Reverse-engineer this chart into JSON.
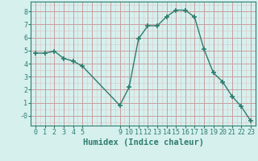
{
  "x": [
    0,
    1,
    2,
    3,
    4,
    5,
    9,
    10,
    11,
    12,
    13,
    14,
    15,
    16,
    17,
    18,
    19,
    20,
    21,
    22,
    23
  ],
  "y": [
    4.8,
    4.8,
    4.95,
    4.4,
    4.2,
    3.8,
    0.8,
    2.2,
    5.9,
    6.9,
    6.9,
    7.6,
    8.1,
    8.1,
    7.55,
    5.1,
    3.3,
    2.6,
    1.5,
    0.7,
    -0.4
  ],
  "line_color": "#2d7d6e",
  "marker_color": "#2d7d6e",
  "bg_color": "#d6f0ee",
  "grid_major_color": "#c8a0a0",
  "grid_minor_color": "#ddc8c8",
  "xlabel": "Humidex (Indice chaleur)",
  "xticks": [
    0,
    1,
    2,
    3,
    4,
    5,
    9,
    10,
    11,
    12,
    13,
    14,
    15,
    16,
    17,
    18,
    19,
    20,
    21,
    22,
    23
  ],
  "yticks": [
    0,
    1,
    2,
    3,
    4,
    5,
    6,
    7,
    8
  ],
  "ytick_labels": [
    "-0",
    "1",
    "2",
    "3",
    "4",
    "5",
    "6",
    "7",
    "8"
  ],
  "ylim": [
    -0.75,
    8.75
  ],
  "xlim": [
    -0.5,
    23.5
  ],
  "xlabel_fontsize": 7.5,
  "tick_fontsize": 6,
  "line_width": 1.0,
  "marker_size": 4
}
